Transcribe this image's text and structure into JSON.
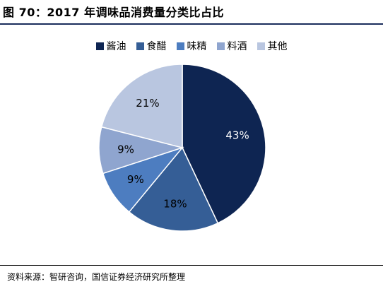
{
  "header": {
    "title": "图 70：2017 年调味品消费量分类比占比"
  },
  "chart_data": {
    "type": "pie",
    "categories": [
      "酱油",
      "食醋",
      "味精",
      "料酒",
      "其他"
    ],
    "values": [
      43,
      18,
      9,
      9,
      21
    ],
    "labels": [
      "43%",
      "18%",
      "9%",
      "9%",
      "21%"
    ],
    "colors": [
      "#0e2552",
      "#355e96",
      "#4d7dc0",
      "#8fa5cf",
      "#b9c6e0"
    ],
    "label_colors": [
      "#ffffff",
      "#000000",
      "#000000",
      "#000000",
      "#000000"
    ],
    "legend_position": "top-center"
  },
  "footer": {
    "source": "资料来源：智研咨询，国信证券经济研究所整理"
  }
}
